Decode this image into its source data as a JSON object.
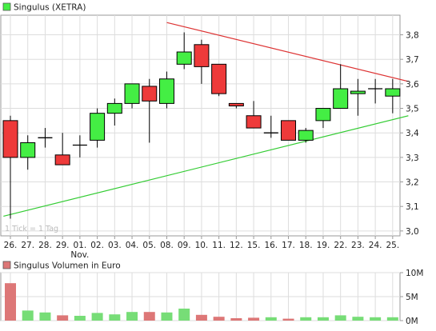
{
  "colors": {
    "up": "#44ee44",
    "down": "#ee3a3a",
    "resistance_line": "#dd3333",
    "support_line": "#33cc33",
    "volume_up": "#77dd77",
    "volume_down": "#dd7777",
    "grid": "#dddddd",
    "frame": "#999999"
  },
  "chart_data": [
    {
      "type": "candlestick",
      "legend": "Singulus (XETRA)",
      "note": "1 Tick = 1 Tag",
      "ylim": [
        2.98,
        3.88
      ],
      "y_ticks": [
        "3,0",
        "3,1",
        "3,2",
        "3,3",
        "3,4",
        "3,5",
        "3,6",
        "3,7",
        "3,8"
      ],
      "y_tick_values": [
        3.0,
        3.1,
        3.2,
        3.3,
        3.4,
        3.5,
        3.6,
        3.7,
        3.8
      ],
      "x_labels": [
        "26.",
        "27.",
        "28.",
        "29.",
        "01.",
        "02.",
        "03.",
        "04.",
        "05.",
        "08.",
        "09.",
        "10.",
        "11.",
        "12.",
        "15.",
        "16.",
        "17.",
        "18.",
        "19.",
        "22.",
        "23.",
        "24.",
        "25."
      ],
      "month_label": "Nov.",
      "month_label_index": 4,
      "candles": [
        {
          "o": 3.45,
          "h": 3.47,
          "l": 3.05,
          "c": 3.3
        },
        {
          "o": 3.3,
          "h": 3.39,
          "l": 3.25,
          "c": 3.36
        },
        {
          "o": 3.38,
          "h": 3.42,
          "l": 3.34,
          "c": 3.38
        },
        {
          "o": 3.31,
          "h": 3.4,
          "l": 3.27,
          "c": 3.27
        },
        {
          "o": 3.35,
          "h": 3.39,
          "l": 3.3,
          "c": 3.35
        },
        {
          "o": 3.37,
          "h": 3.5,
          "l": 3.34,
          "c": 3.48
        },
        {
          "o": 3.48,
          "h": 3.54,
          "l": 3.43,
          "c": 3.52
        },
        {
          "o": 3.52,
          "h": 3.6,
          "l": 3.5,
          "c": 3.6
        },
        {
          "o": 3.59,
          "h": 3.62,
          "l": 3.36,
          "c": 3.53
        },
        {
          "o": 3.52,
          "h": 3.65,
          "l": 3.5,
          "c": 3.62
        },
        {
          "o": 3.68,
          "h": 3.81,
          "l": 3.66,
          "c": 3.73
        },
        {
          "o": 3.76,
          "h": 3.78,
          "l": 3.6,
          "c": 3.67
        },
        {
          "o": 3.68,
          "h": 3.68,
          "l": 3.55,
          "c": 3.56
        },
        {
          "o": 3.52,
          "h": 3.52,
          "l": 3.5,
          "c": 3.51
        },
        {
          "o": 3.47,
          "h": 3.53,
          "l": 3.42,
          "c": 3.42
        },
        {
          "o": 3.4,
          "h": 3.47,
          "l": 3.38,
          "c": 3.4
        },
        {
          "o": 3.45,
          "h": 3.45,
          "l": 3.37,
          "c": 3.37
        },
        {
          "o": 3.37,
          "h": 3.42,
          "l": 3.36,
          "c": 3.41
        },
        {
          "o": 3.45,
          "h": 3.5,
          "l": 3.42,
          "c": 3.5
        },
        {
          "o": 3.5,
          "h": 3.68,
          "l": 3.5,
          "c": 3.58
        },
        {
          "o": 3.56,
          "h": 3.62,
          "l": 3.47,
          "c": 3.57
        },
        {
          "o": 3.58,
          "h": 3.62,
          "l": 3.52,
          "c": 3.58
        },
        {
          "o": 3.55,
          "h": 3.62,
          "l": 3.48,
          "c": 3.58
        }
      ],
      "trendlines": [
        {
          "name": "resistance",
          "from": [
            9,
            3.85
          ],
          "to": [
            22.9,
            3.61
          ]
        },
        {
          "name": "support",
          "from": [
            -0.4,
            3.06
          ],
          "to": [
            22.9,
            3.47
          ]
        }
      ],
      "grid": true
    },
    {
      "type": "bar",
      "legend": "Singulus Volumen in Euro",
      "ylim": [
        0,
        10000000
      ],
      "y_ticks": [
        "10M",
        "5M",
        "0M"
      ],
      "y_tick_values": [
        10000000,
        5000000,
        0
      ],
      "values": [
        7800000,
        2100000,
        1700000,
        1100000,
        1000000,
        1600000,
        1300000,
        1800000,
        1800000,
        1700000,
        2500000,
        1200000,
        800000,
        500000,
        600000,
        700000,
        400000,
        700000,
        700000,
        1100000,
        800000,
        700000,
        700000
      ],
      "directions": [
        "down",
        "up",
        "up",
        "down",
        "up",
        "up",
        "up",
        "up",
        "down",
        "up",
        "up",
        "down",
        "down",
        "down",
        "down",
        "up",
        "down",
        "up",
        "up",
        "up",
        "up",
        "up",
        "up"
      ],
      "grid": true
    }
  ]
}
